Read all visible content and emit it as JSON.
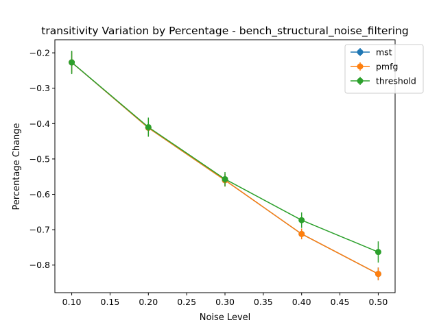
{
  "chart_data": {
    "type": "line",
    "title": "transitivity Variation by Percentage - bench_structural_noise_filtering",
    "xlabel": "Noise Level",
    "ylabel": "Percentage Change",
    "xlim": [
      0.078,
      0.522
    ],
    "ylim": [
      -0.878,
      -0.163
    ],
    "xticks": [
      0.1,
      0.15,
      0.2,
      0.25,
      0.3,
      0.35,
      0.4,
      0.45,
      0.5
    ],
    "xtick_labels": [
      "0.10",
      "0.15",
      "0.20",
      "0.25",
      "0.30",
      "0.35",
      "0.40",
      "0.45",
      "0.50"
    ],
    "yticks": [
      -0.2,
      -0.3,
      -0.4,
      -0.5,
      -0.6,
      -0.7,
      -0.8
    ],
    "ytick_labels": [
      "−0.2",
      "−0.3",
      "−0.4",
      "−0.5",
      "−0.6",
      "−0.7",
      "−0.8"
    ],
    "legend_position": "top-right",
    "grid": false,
    "x": [
      0.1,
      0.2,
      0.3,
      0.4,
      0.5
    ],
    "series": [
      {
        "name": "mst",
        "color": "#1f77b4",
        "values": [
          -0.227,
          -0.412,
          -0.56,
          -0.712,
          -0.825
        ],
        "errors": [
          0.03,
          0.025,
          0.018,
          0.015,
          0.018
        ]
      },
      {
        "name": "pmfg",
        "color": "#ff7f0e",
        "values": [
          -0.227,
          -0.412,
          -0.56,
          -0.712,
          -0.825
        ],
        "errors": [
          0.03,
          0.025,
          0.018,
          0.015,
          0.018
        ]
      },
      {
        "name": "threshold",
        "color": "#2ca02c",
        "values": [
          -0.227,
          -0.41,
          -0.557,
          -0.673,
          -0.763
        ],
        "errors": [
          0.033,
          0.027,
          0.02,
          0.022,
          0.03
        ]
      }
    ]
  }
}
